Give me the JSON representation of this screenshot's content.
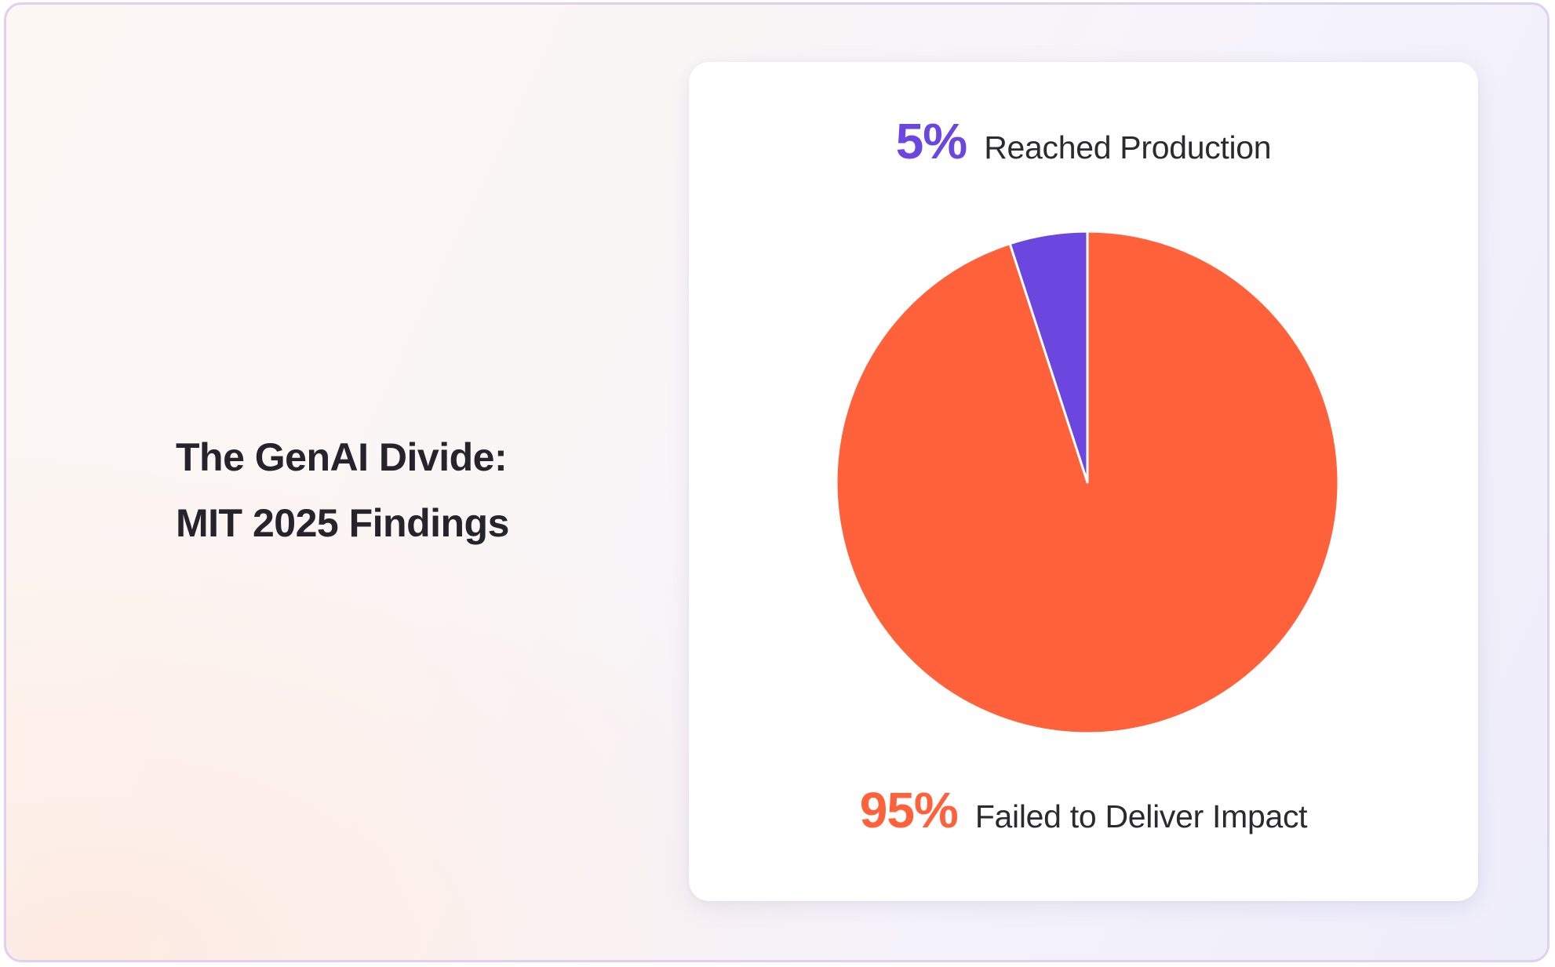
{
  "title_lines": [
    "The GenAI Divide:",
    "MIT 2025 Findings"
  ],
  "colors": {
    "reached": "#6b47e0",
    "failed": "#ff613b",
    "slice_border": "#ffffff"
  },
  "chart_data": {
    "type": "pie",
    "title": "The GenAI Divide: MIT 2025 Findings",
    "slices": [
      {
        "name": "Reached Production",
        "value": 5,
        "label": "5%",
        "color": "#6b47e0"
      },
      {
        "name": "Failed to Deliver Impact",
        "value": 95,
        "label": "95%",
        "color": "#ff613b"
      }
    ],
    "start": "top",
    "direction": "counterclockwise",
    "legend_position": "top and bottom"
  }
}
